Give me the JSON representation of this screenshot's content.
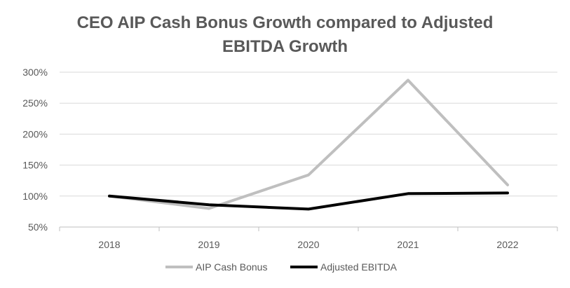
{
  "chart_data": {
    "type": "line",
    "title_lines": [
      "CEO AIP Cash Bonus Growth compared to Adjusted",
      "EBITDA Growth"
    ],
    "categories": [
      "2018",
      "2019",
      "2020",
      "2021",
      "2022"
    ],
    "y_ticks": [
      "50%",
      "100%",
      "150%",
      "200%",
      "250%",
      "300%"
    ],
    "ylim": [
      50,
      300
    ],
    "y_unit": "%",
    "grid": true,
    "legend_position": "bottom",
    "series": [
      {
        "name": "AIP Cash Bonus",
        "values": [
          100,
          80,
          134,
          287,
          118
        ],
        "color": "#bfbfbf"
      },
      {
        "name": "Adjusted EBITDA",
        "values": [
          100,
          86,
          79,
          104,
          105
        ],
        "color": "#000000"
      }
    ],
    "colors": {
      "gridline": "#d9d9d9",
      "axis": "#bfbfbf",
      "text": "#595959"
    }
  }
}
